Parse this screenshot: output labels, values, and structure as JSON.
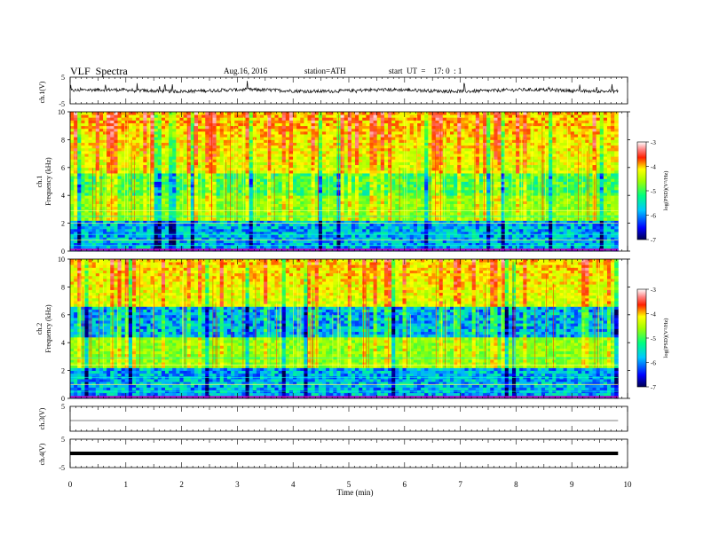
{
  "header": {
    "title": "VLF  Spectra",
    "date": "Aug.16, 2016",
    "station": "station=ATH",
    "start_time": "start  UT  =    17: 0  : 1"
  },
  "chart_data": [
    {
      "type": "line",
      "panel": "ch.1 waveform",
      "ylabel": "ch.1(V)",
      "ylim": [
        -5,
        5
      ],
      "yticks": [
        "5",
        "-5"
      ],
      "xlim": [
        0,
        10
      ],
      "description_note": "",
      "mean_level": 0,
      "noise_amplitude": 0.8
    },
    {
      "type": "heatmap",
      "panel": "ch.1 spectrogram",
      "ylabel": "ch.1\nFrequency  (kHz)",
      "ylim": [
        0,
        10
      ],
      "yticks": [
        "0",
        "2",
        "4",
        "6",
        "8",
        "10"
      ],
      "xlim": [
        0,
        10
      ],
      "colorbar": {
        "label": "log(PSD)(V²/Hz)",
        "ticks": [
          "-3",
          "-4",
          "-5",
          "-6",
          "-7"
        ],
        "range": [
          -7,
          -3
        ]
      },
      "noise_band_khz": [
        4,
        5.5
      ],
      "elf_lines_khz": [
        0.4,
        0.8,
        1.2,
        2.0,
        2.5,
        2.9
      ]
    },
    {
      "type": "heatmap",
      "panel": "ch.2 spectrogram",
      "ylabel": "ch.2\nFrequency  (kHz)",
      "ylim": [
        0,
        10
      ],
      "yticks": [
        "0",
        "2",
        "4",
        "6",
        "8",
        "10"
      ],
      "xlim": [
        0,
        10
      ],
      "colorbar": {
        "label": "log(PSD)(V²/Hz)",
        "ticks": [
          "-3",
          "-4",
          "-5",
          "-6",
          "-7"
        ],
        "range": [
          -7,
          -3
        ]
      },
      "noise_band_khz": [
        4.5,
        6.5
      ],
      "elf_lines_khz": [
        0.5,
        1.0,
        1.5,
        2.4,
        2.9
      ]
    },
    {
      "type": "line",
      "panel": "ch.3 waveform",
      "ylabel": "ch.3(V)",
      "ylim": [
        -5,
        5
      ],
      "yticks": [
        "5"
      ],
      "xlim": [
        0,
        10
      ],
      "mean_level": 0
    },
    {
      "type": "line",
      "panel": "ch.4 waveform",
      "ylabel": "ch.4(V)",
      "ylim": [
        -5,
        5
      ],
      "yticks": [
        "5",
        "-5"
      ],
      "xlim": [
        0,
        10
      ],
      "mean_level": 0
    }
  ],
  "xaxis": {
    "label": "Time  (min)",
    "ticks": [
      "0",
      "1",
      "2",
      "3",
      "4",
      "5",
      "6",
      "7",
      "8",
      "9",
      "10"
    ],
    "data_end_min": 9.83
  },
  "colors": {
    "axis": "#000000",
    "background": "#ffffff"
  }
}
